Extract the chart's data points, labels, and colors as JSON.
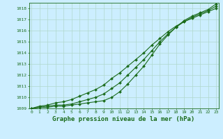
{
  "title": "Graphe pression niveau de la mer (hPa)",
  "bg_color": "#cceeff",
  "grid_color": "#b0d8cc",
  "line_color": "#1a6b1a",
  "x_labels": [
    "0",
    "1",
    "2",
    "3",
    "4",
    "5",
    "6",
    "7",
    "8",
    "9",
    "10",
    "11",
    "12",
    "13",
    "14",
    "15",
    "16",
    "17",
    "18",
    "19",
    "20",
    "21",
    "22",
    "23"
  ],
  "ylim": [
    1009.0,
    1018.5
  ],
  "xlim": [
    -0.3,
    23.3
  ],
  "yticks": [
    1009,
    1010,
    1011,
    1012,
    1013,
    1014,
    1015,
    1016,
    1017,
    1018
  ],
  "line1": [
    1009.0,
    1009.1,
    1009.1,
    1009.2,
    1009.2,
    1009.3,
    1009.4,
    1009.5,
    1009.6,
    1009.7,
    1010.0,
    1010.5,
    1011.2,
    1012.0,
    1012.8,
    1013.8,
    1014.8,
    1015.6,
    1016.3,
    1016.9,
    1017.3,
    1017.6,
    1017.9,
    1018.4
  ],
  "line2": [
    1009.0,
    1009.1,
    1009.2,
    1009.3,
    1009.3,
    1009.4,
    1009.6,
    1009.8,
    1010.0,
    1010.3,
    1010.8,
    1011.3,
    1012.0,
    1012.7,
    1013.4,
    1014.2,
    1015.0,
    1015.7,
    1016.3,
    1016.8,
    1017.2,
    1017.5,
    1017.8,
    1018.2
  ],
  "line3": [
    1009.0,
    1009.2,
    1009.3,
    1009.5,
    1009.6,
    1009.8,
    1010.1,
    1010.4,
    1010.7,
    1011.1,
    1011.7,
    1012.2,
    1012.8,
    1013.4,
    1014.0,
    1014.7,
    1015.3,
    1015.9,
    1016.4,
    1016.8,
    1017.1,
    1017.4,
    1017.7,
    1018.0
  ],
  "marker": "D",
  "marker_size": 2.0,
  "line_width": 0.8,
  "title_fontsize": 6.5,
  "tick_fontsize": 4.5
}
